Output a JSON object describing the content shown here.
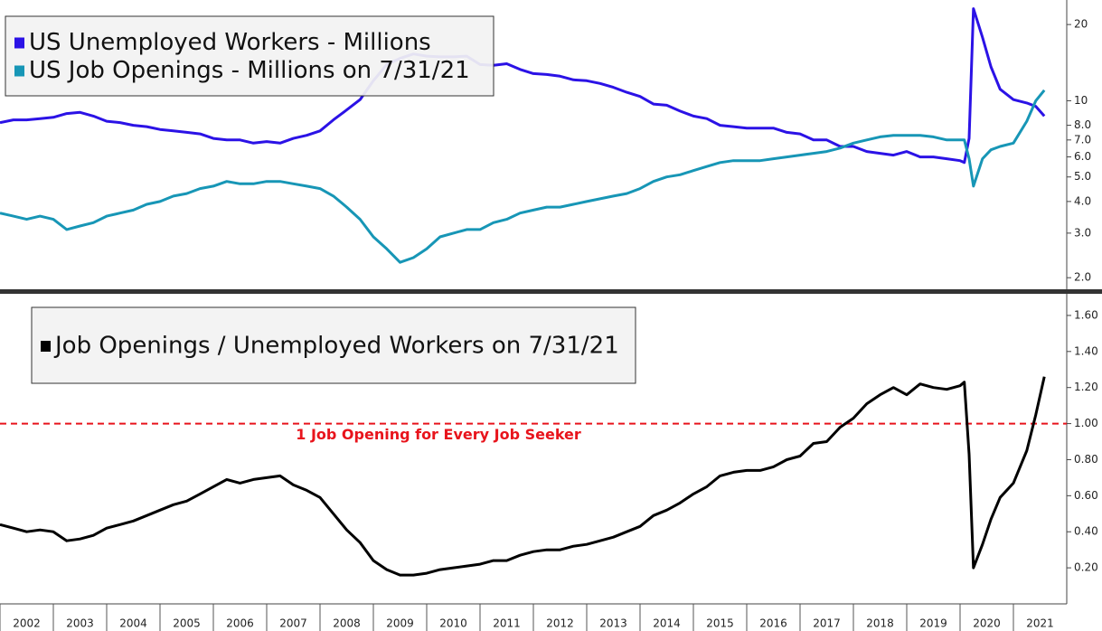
{
  "chart_data": [
    {
      "type": "line",
      "log_scale": true,
      "legend": "upper left",
      "xlim": [
        2002,
        2022
      ],
      "ylim": [
        1.8,
        25
      ],
      "yticks": [
        {
          "value": 2,
          "label": "2.0"
        },
        {
          "value": 3,
          "label": "3.0"
        },
        {
          "value": 4,
          "label": "4.0"
        },
        {
          "value": 5,
          "label": "5.0"
        },
        {
          "value": 6,
          "label": "6.0"
        },
        {
          "value": 7,
          "label": "7.0"
        },
        {
          "value": 8,
          "label": "8.0"
        },
        10,
        20
      ],
      "x": [
        2002,
        2002.25,
        2002.5,
        2002.75,
        2003,
        2003.25,
        2003.5,
        2003.75,
        2004,
        2004.25,
        2004.5,
        2004.75,
        2005,
        2005.25,
        2005.5,
        2005.75,
        2006,
        2006.25,
        2006.5,
        2006.75,
        2007,
        2007.25,
        2007.5,
        2007.75,
        2008,
        2008.25,
        2008.5,
        2008.75,
        2009,
        2009.25,
        2009.5,
        2009.75,
        2010,
        2010.25,
        2010.5,
        2010.75,
        2011,
        2011.25,
        2011.5,
        2011.75,
        2012,
        2012.25,
        2012.5,
        2012.75,
        2013,
        2013.25,
        2013.5,
        2013.75,
        2014,
        2014.25,
        2014.5,
        2014.75,
        2015,
        2015.25,
        2015.5,
        2015.75,
        2016,
        2016.25,
        2016.5,
        2016.75,
        2017,
        2017.25,
        2017.5,
        2017.75,
        2018,
        2018.25,
        2018.5,
        2018.75,
        2019,
        2019.25,
        2019.5,
        2019.75,
        2020,
        2020.08,
        2020.17,
        2020.25,
        2020.42,
        2020.58,
        2020.75,
        2021,
        2021.25,
        2021.42,
        2021.58
      ],
      "series": [
        {
          "name": "US Unemployed Workers - Millions",
          "color": "#2b12e6",
          "values": [
            8.2,
            8.4,
            8.4,
            8.5,
            8.6,
            8.9,
            9.0,
            8.7,
            8.3,
            8.2,
            8.0,
            7.9,
            7.7,
            7.6,
            7.5,
            7.4,
            7.1,
            7.0,
            7.0,
            6.8,
            6.9,
            6.8,
            7.1,
            7.3,
            7.6,
            8.4,
            9.2,
            10.1,
            12.0,
            13.9,
            14.7,
            15.3,
            15.0,
            14.9,
            14.9,
            15.0,
            13.9,
            13.8,
            14.0,
            13.3,
            12.8,
            12.7,
            12.5,
            12.1,
            12.0,
            11.7,
            11.3,
            10.8,
            10.4,
            9.7,
            9.6,
            9.1,
            8.7,
            8.5,
            8.0,
            7.9,
            7.8,
            7.8,
            7.8,
            7.5,
            7.4,
            7.0,
            7.0,
            6.6,
            6.6,
            6.3,
            6.2,
            6.1,
            6.3,
            6.0,
            6.0,
            5.9,
            5.8,
            5.7,
            7.1,
            23.1,
            17.8,
            13.6,
            11.1,
            10.1,
            9.8,
            9.5,
            8.7
          ]
        },
        {
          "name": "US Job Openings - Millions on 7/31/21",
          "color": "#1796b6",
          "values": [
            3.6,
            3.5,
            3.4,
            3.5,
            3.4,
            3.1,
            3.2,
            3.3,
            3.5,
            3.6,
            3.7,
            3.9,
            4.0,
            4.2,
            4.3,
            4.5,
            4.6,
            4.8,
            4.7,
            4.7,
            4.8,
            4.8,
            4.7,
            4.6,
            4.5,
            4.2,
            3.8,
            3.4,
            2.9,
            2.6,
            2.3,
            2.4,
            2.6,
            2.9,
            3.0,
            3.1,
            3.1,
            3.3,
            3.4,
            3.6,
            3.7,
            3.8,
            3.8,
            3.9,
            4.0,
            4.1,
            4.2,
            4.3,
            4.5,
            4.8,
            5.0,
            5.1,
            5.3,
            5.5,
            5.7,
            5.8,
            5.8,
            5.8,
            5.9,
            6.0,
            6.1,
            6.2,
            6.3,
            6.5,
            6.8,
            7.0,
            7.2,
            7.3,
            7.3,
            7.3,
            7.2,
            7.0,
            7.0,
            7.0,
            5.9,
            4.6,
            5.9,
            6.4,
            6.6,
            6.8,
            8.3,
            10.0,
            11.0
          ]
        }
      ]
    },
    {
      "type": "line",
      "log_scale": false,
      "legend": "upper left",
      "xlim": [
        2002,
        2022
      ],
      "ylim": [
        0,
        1.72
      ],
      "yticks": [
        {
          "value": 0.2,
          "label": "0.20"
        },
        {
          "value": 0.4,
          "label": "0.40"
        },
        {
          "value": 0.6,
          "label": "0.60"
        },
        {
          "value": 0.8,
          "label": "0.80"
        },
        {
          "value": 1.0,
          "label": "1.00"
        },
        {
          "value": 1.2,
          "label": "1.20"
        },
        {
          "value": 1.4,
          "label": "1.40"
        },
        {
          "value": 1.6,
          "label": "1.60"
        }
      ],
      "xticks": [
        2002,
        2003,
        2004,
        2005,
        2006,
        2007,
        2008,
        2009,
        2010,
        2011,
        2012,
        2013,
        2014,
        2015,
        2016,
        2017,
        2018,
        2019,
        2020,
        2021
      ],
      "reference_line": {
        "value": 1,
        "color": "#e8141c",
        "label": "1 Job Opening for Every Job Seeker"
      },
      "x": [
        2002,
        2002.25,
        2002.5,
        2002.75,
        2003,
        2003.25,
        2003.5,
        2003.75,
        2004,
        2004.25,
        2004.5,
        2004.75,
        2005,
        2005.25,
        2005.5,
        2005.75,
        2006,
        2006.25,
        2006.5,
        2006.75,
        2007,
        2007.25,
        2007.5,
        2007.75,
        2008,
        2008.25,
        2008.5,
        2008.75,
        2009,
        2009.25,
        2009.5,
        2009.75,
        2010,
        2010.25,
        2010.5,
        2010.75,
        2011,
        2011.25,
        2011.5,
        2011.75,
        2012,
        2012.25,
        2012.5,
        2012.75,
        2013,
        2013.25,
        2013.5,
        2013.75,
        2014,
        2014.25,
        2014.5,
        2014.75,
        2015,
        2015.25,
        2015.5,
        2015.75,
        2016,
        2016.25,
        2016.5,
        2016.75,
        2017,
        2017.25,
        2017.5,
        2017.75,
        2018,
        2018.25,
        2018.5,
        2018.75,
        2019,
        2019.25,
        2019.5,
        2019.75,
        2020,
        2020.08,
        2020.17,
        2020.25,
        2020.42,
        2020.58,
        2020.75,
        2021,
        2021.25,
        2021.42,
        2021.58
      ],
      "series": [
        {
          "name": "Job Openings / Unemployed Workers on 7/31/21",
          "color": "#000000",
          "values": [
            0.44,
            0.42,
            0.4,
            0.41,
            0.4,
            0.35,
            0.36,
            0.38,
            0.42,
            0.44,
            0.46,
            0.49,
            0.52,
            0.55,
            0.57,
            0.61,
            0.65,
            0.69,
            0.67,
            0.69,
            0.7,
            0.71,
            0.66,
            0.63,
            0.59,
            0.5,
            0.41,
            0.34,
            0.24,
            0.19,
            0.16,
            0.16,
            0.17,
            0.19,
            0.2,
            0.21,
            0.22,
            0.24,
            0.24,
            0.27,
            0.29,
            0.3,
            0.3,
            0.32,
            0.33,
            0.35,
            0.37,
            0.4,
            0.43,
            0.49,
            0.52,
            0.56,
            0.61,
            0.65,
            0.71,
            0.73,
            0.74,
            0.74,
            0.76,
            0.8,
            0.82,
            0.89,
            0.9,
            0.98,
            1.03,
            1.11,
            1.16,
            1.2,
            1.16,
            1.22,
            1.2,
            1.19,
            1.21,
            1.23,
            0.83,
            0.2,
            0.33,
            0.47,
            0.59,
            0.67,
            0.85,
            1.05,
            1.26
          ]
        }
      ]
    }
  ]
}
